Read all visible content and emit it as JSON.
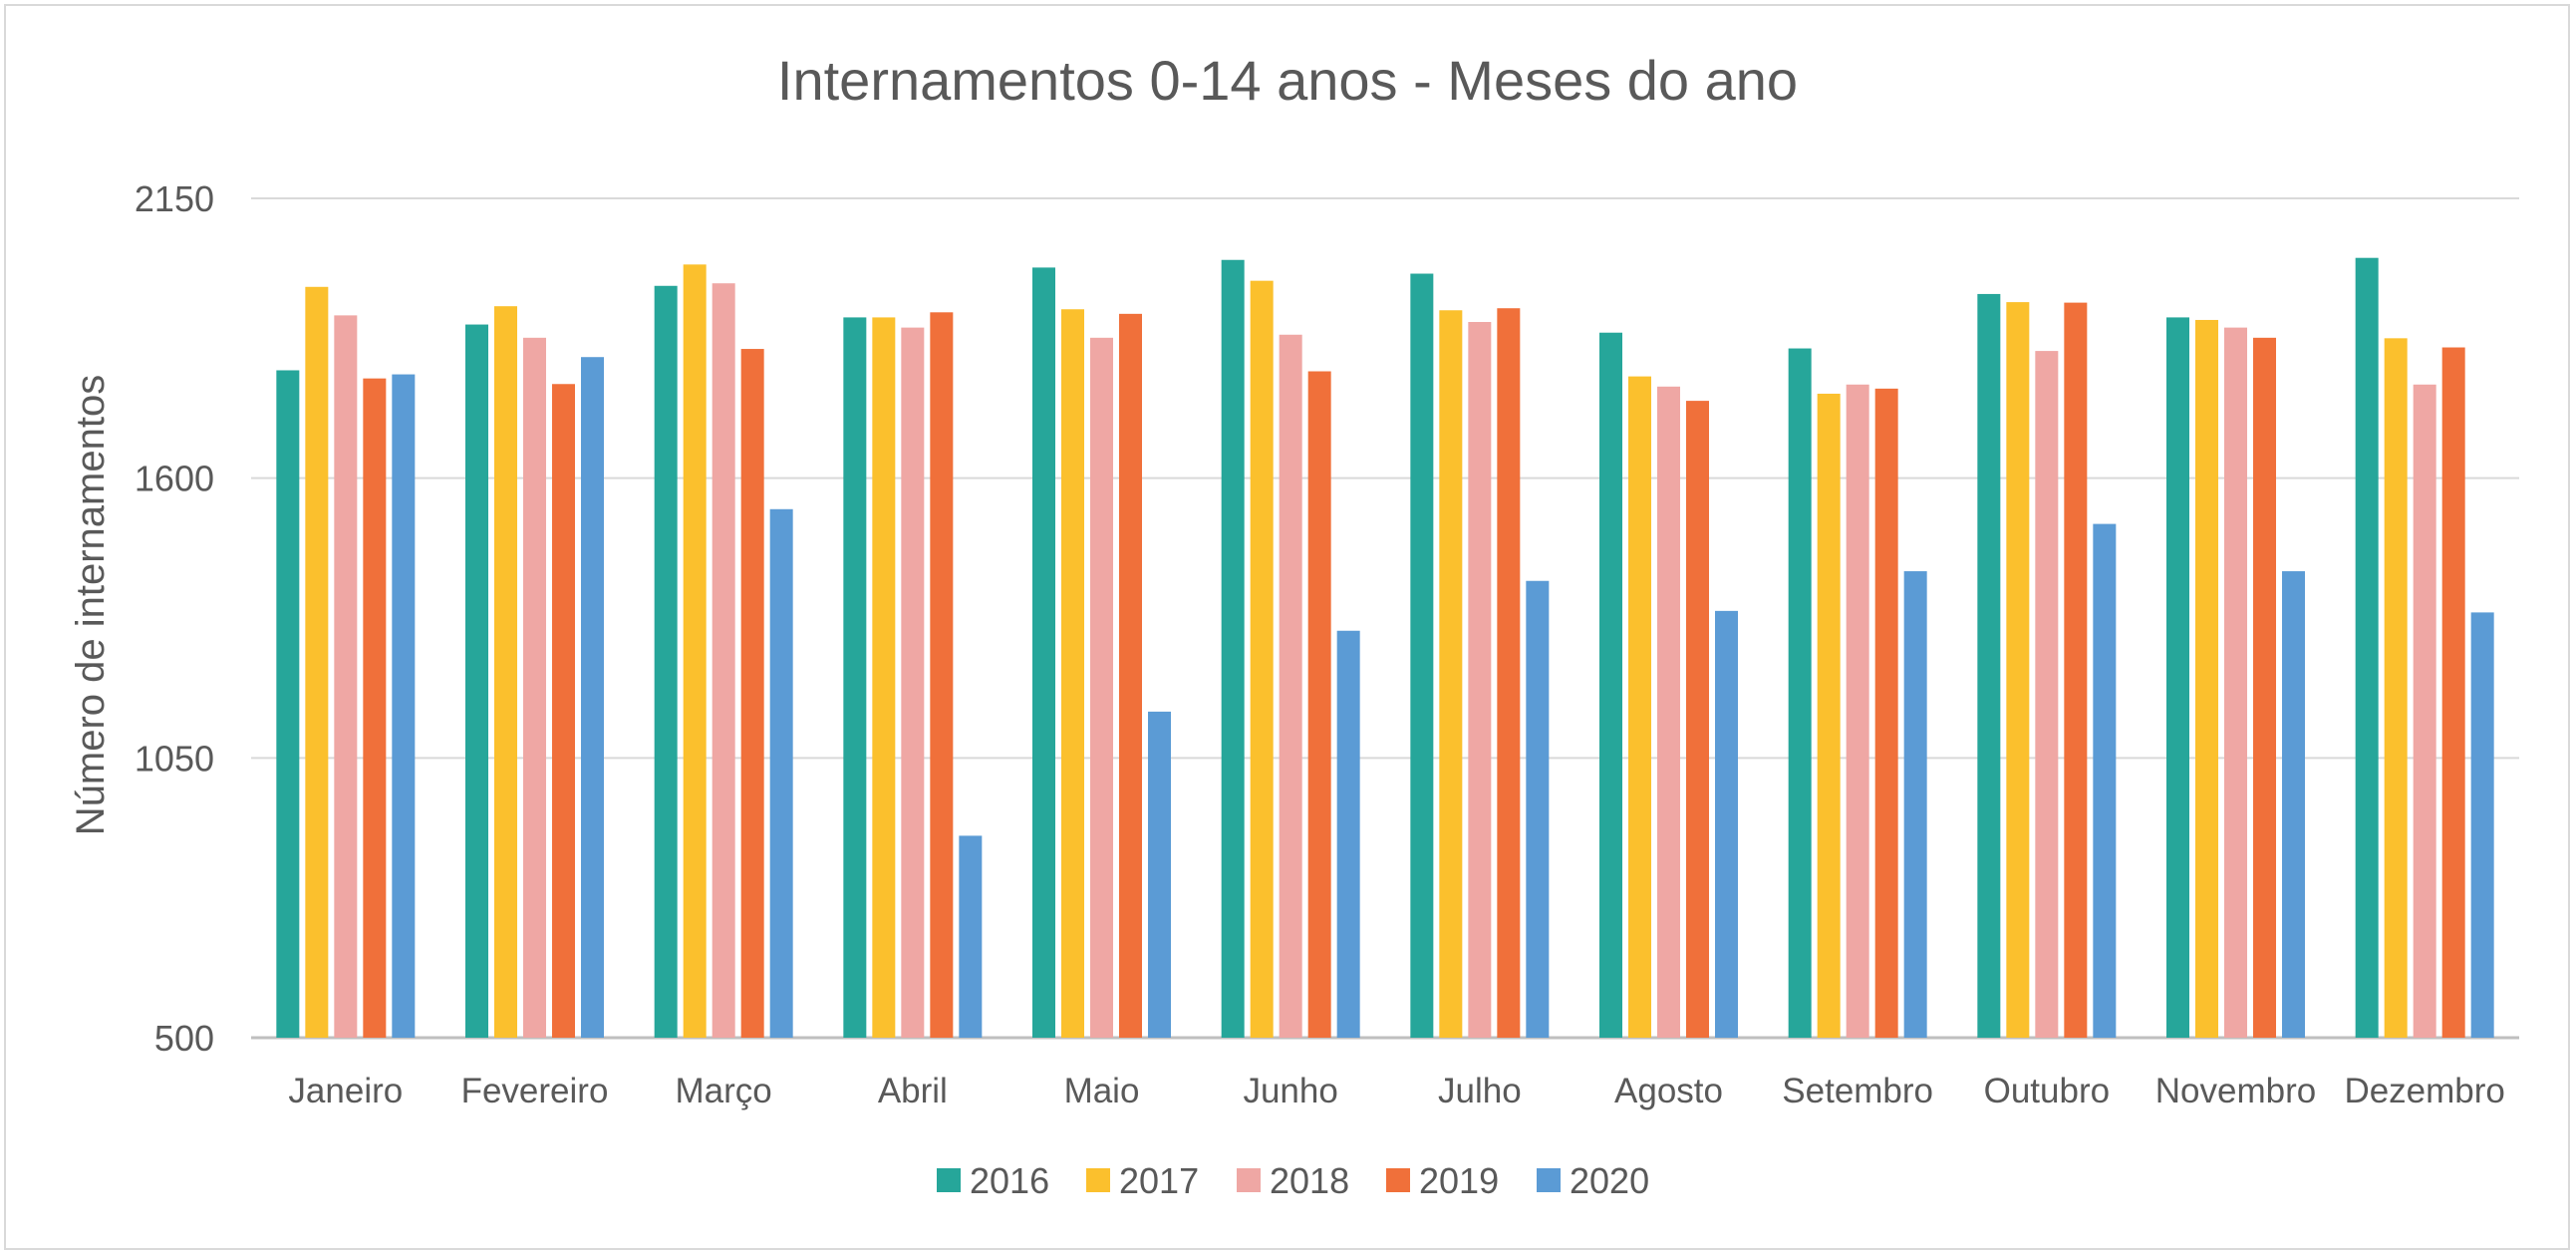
{
  "chart_data": {
    "type": "bar",
    "title": "Internamentos 0-14 anos - Meses do ano",
    "xlabel": "",
    "ylabel": "Número de internamentos",
    "ylim": [
      500,
      2150
    ],
    "yticks": [
      500,
      1050,
      1600,
      2150
    ],
    "grid": true,
    "legend_position": "bottom",
    "categories": [
      "Janeiro",
      "Fevereiro",
      "Março",
      "Abril",
      "Maio",
      "Junho",
      "Julho",
      "Agosto",
      "Setembro",
      "Outubro",
      "Novembro",
      "Dezembro"
    ],
    "series": [
      {
        "name": "2016",
        "color": "#26A69A",
        "values": [
          1812,
          1902,
          1978,
          1916,
          2014,
          2029,
          2002,
          1886,
          1855,
          1962,
          1916,
          2033
        ]
      },
      {
        "name": "2017",
        "color": "#FBC02D",
        "values": [
          1976,
          1938,
          2020,
          1916,
          1932,
          1988,
          1930,
          1800,
          1766,
          1946,
          1911,
          1875
        ]
      },
      {
        "name": "2018",
        "color": "#EFA7A4",
        "values": [
          1920,
          1876,
          1983,
          1896,
          1876,
          1882,
          1907,
          1780,
          1784,
          1850,
          1896,
          1784
        ]
      },
      {
        "name": "2019",
        "color": "#F0703A",
        "values": [
          1796,
          1785,
          1854,
          1926,
          1923,
          1810,
          1934,
          1752,
          1776,
          1945,
          1876,
          1857
        ]
      },
      {
        "name": "2020",
        "color": "#5B9BD5",
        "values": [
          1804,
          1838,
          1539,
          897,
          1141,
          1300,
          1398,
          1339,
          1417,
          1510,
          1417,
          1336
        ]
      }
    ]
  }
}
